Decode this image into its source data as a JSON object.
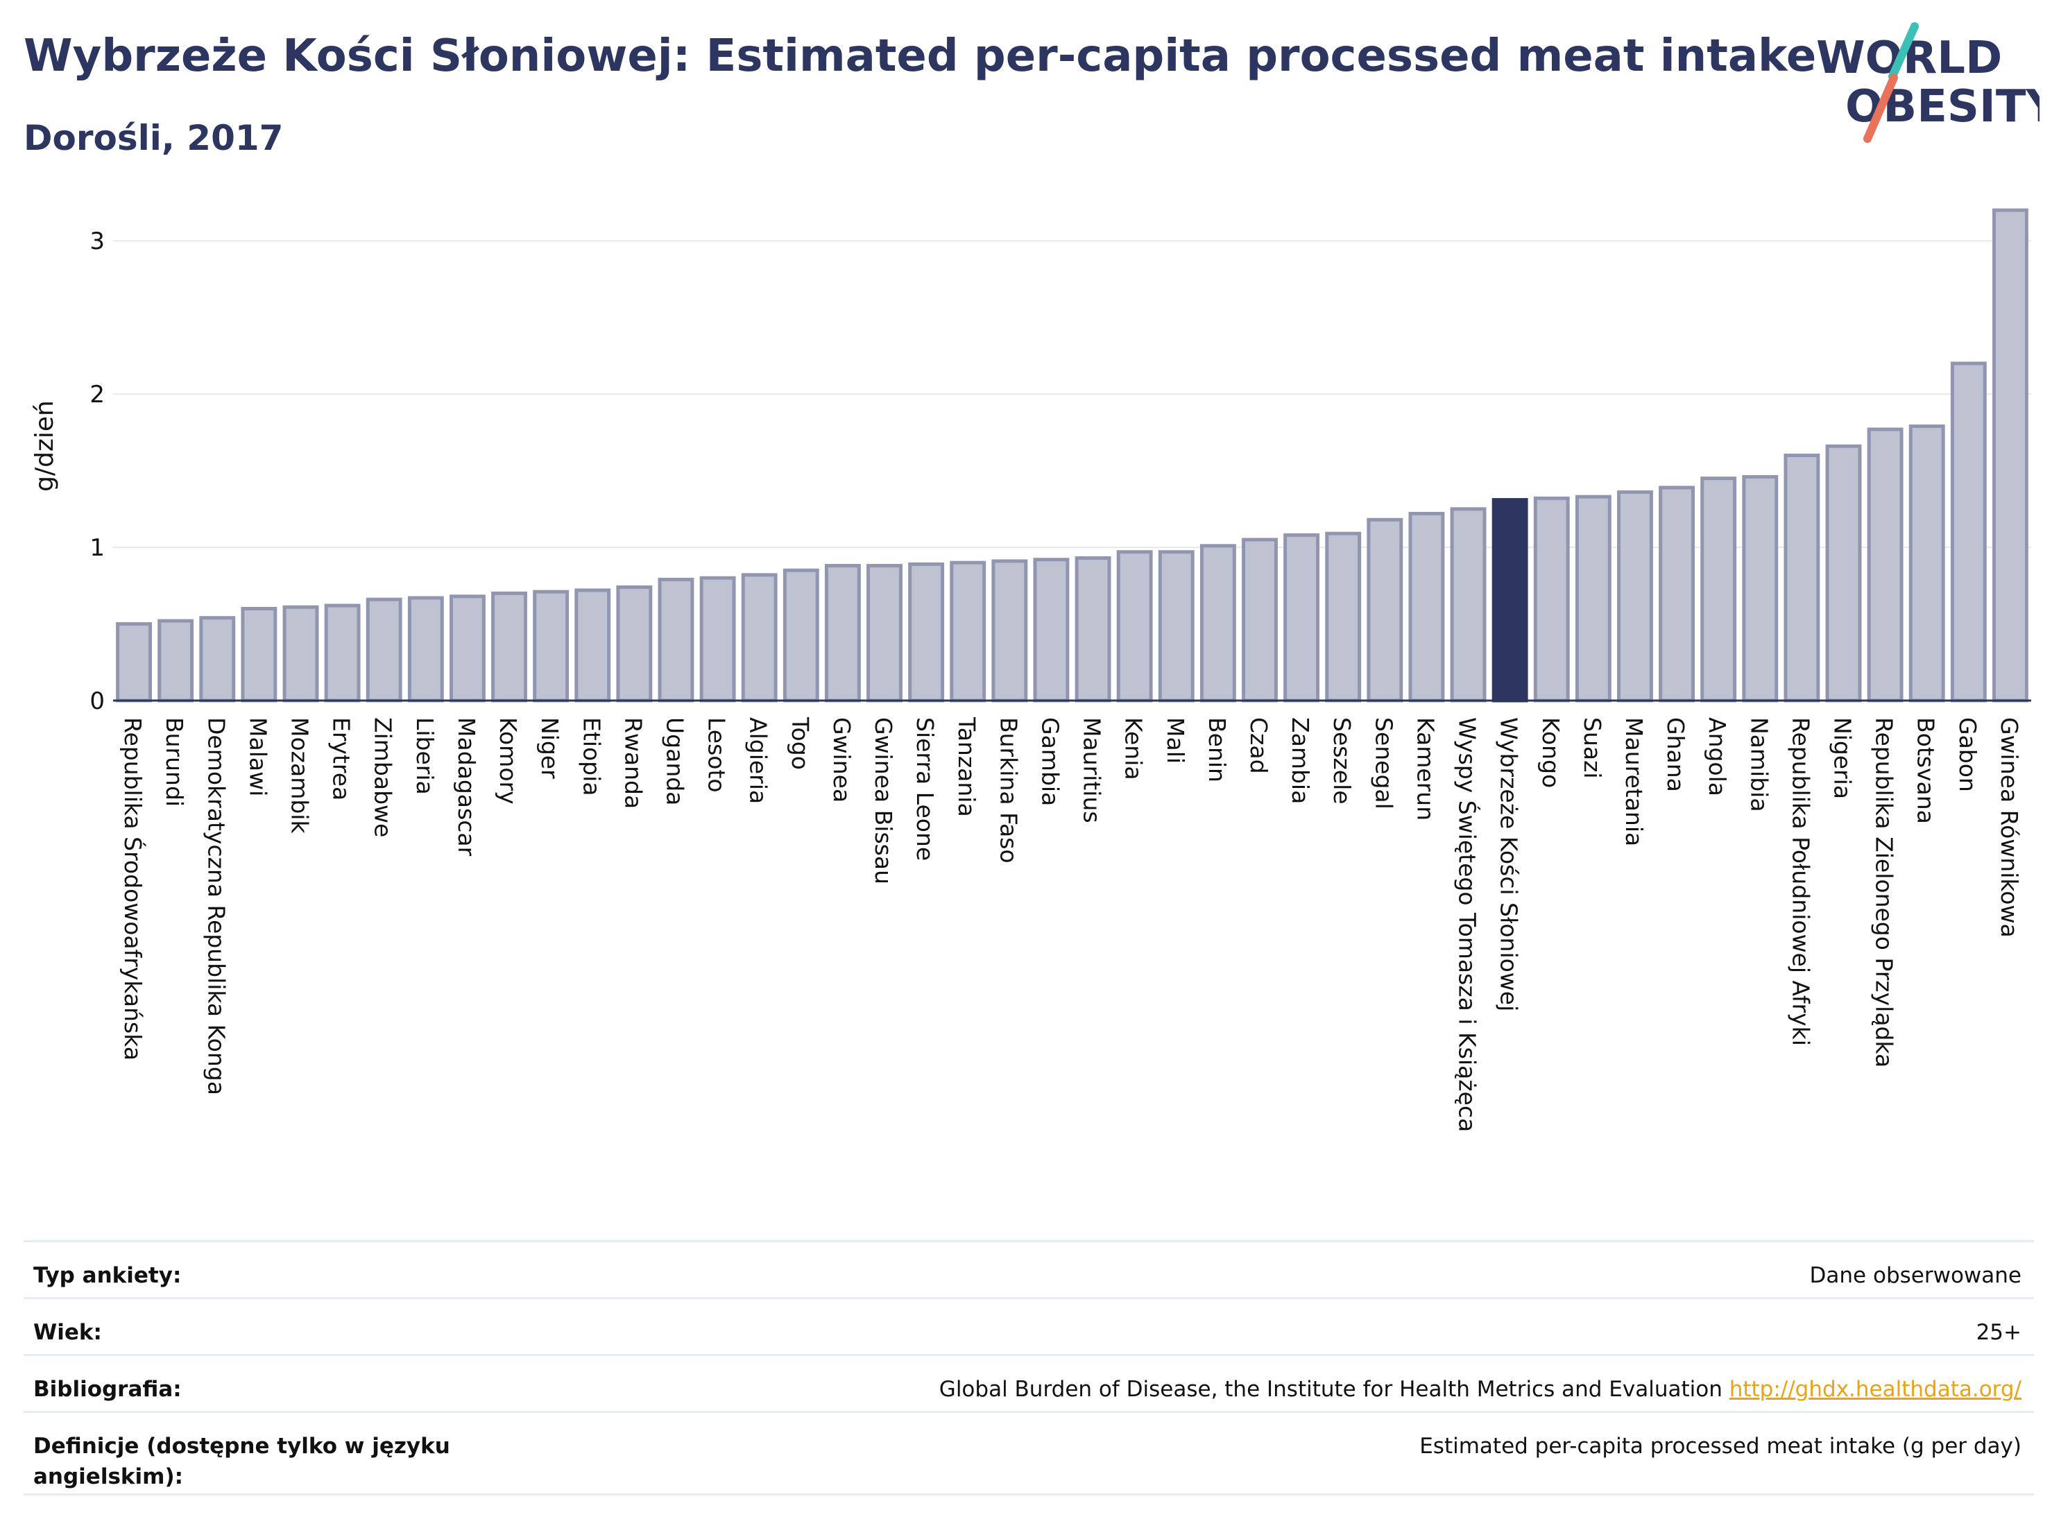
{
  "header": {
    "title": "Wybrzeże Kości Słoniowej: Estimated per-capita processed meat intake",
    "subtitle": "Dorośli, 2017"
  },
  "logo": {
    "line1": "WORLD",
    "line2": "OBESITY",
    "accent_teal": "#3cbfb4",
    "accent_coral": "#e8735a"
  },
  "chart_data": {
    "type": "bar",
    "ylabel": "g/dzień",
    "xlabel": "",
    "ylim": [
      0,
      3.2
    ],
    "yticks": [
      0,
      1,
      2,
      3
    ],
    "grid": true,
    "highlight": "Wybrzeże Kości Słoniowej",
    "colors": {
      "bar": "#bfc3d1",
      "bar_edge": "#9096b0",
      "highlight": "#2d3561"
    },
    "categories": [
      "Republika Środowoafrykańska",
      "Burundi",
      "Demokratyczna Republika Konga",
      "Malawi",
      "Mozambik",
      "Erytrea",
      "Zimbabwe",
      "Liberia",
      "Madagascar",
      "Komory",
      "Niger",
      "Etiopia",
      "Rwanda",
      "Uganda",
      "Lesoto",
      "Algieria",
      "Togo",
      "Gwinea",
      "Gwinea Bissau",
      "Sierra Leone",
      "Tanzania",
      "Burkina Faso",
      "Gambia",
      "Mauritius",
      "Kenia",
      "Mali",
      "Benin",
      "Czad",
      "Zambia",
      "Seszele",
      "Senegal",
      "Kamerun",
      "Wyspy Świętego Tomasza i Książęca",
      "Wybrzeże Kości Słoniowej",
      "Kongo",
      "Suazi",
      "Mauretania",
      "Ghana",
      "Angola",
      "Namibia",
      "Republika Południowej Afryki",
      "Nigeria",
      "Republika Zielonego Przylądka",
      "Botsvana",
      "Gabon",
      "Gwinea Równikowa"
    ],
    "values": [
      0.5,
      0.52,
      0.54,
      0.6,
      0.61,
      0.62,
      0.66,
      0.67,
      0.68,
      0.7,
      0.71,
      0.72,
      0.74,
      0.79,
      0.8,
      0.82,
      0.85,
      0.88,
      0.88,
      0.89,
      0.9,
      0.91,
      0.92,
      0.93,
      0.97,
      0.97,
      1.01,
      1.05,
      1.08,
      1.09,
      1.18,
      1.22,
      1.25,
      1.31,
      1.32,
      1.33,
      1.36,
      1.39,
      1.45,
      1.46,
      1.6,
      1.66,
      1.77,
      1.79,
      2.2,
      3.2
    ]
  },
  "info": [
    {
      "label": "Typ ankiety:",
      "value": "Dane obserwowane",
      "link": ""
    },
    {
      "label": "Wiek:",
      "value": "25+",
      "link": ""
    },
    {
      "label": "Bibliografia:",
      "value": "Global Burden of Disease, the Institute for Health Metrics and Evaluation",
      "link": "http://ghdx.healthdata.org/"
    },
    {
      "label": "Definicje (dostępne tylko w języku angielskim):",
      "value": "Estimated per-capita processed meat intake (g per day)",
      "link": ""
    }
  ]
}
